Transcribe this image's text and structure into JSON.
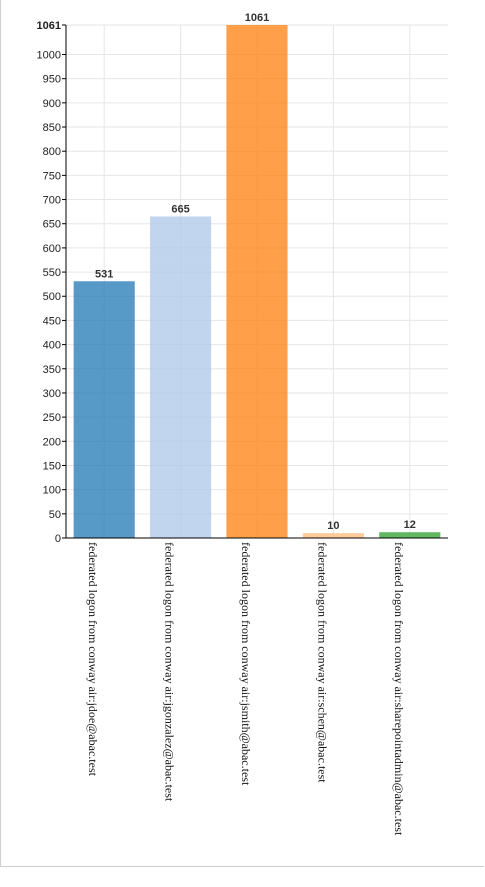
{
  "chart_data": {
    "type": "bar",
    "categories": [
      "federated logon from conway air:jdoe@abac.test",
      "federated logon from conway air:jgonzalez@abac.test",
      "federated logon from conway air:jsmith@abac.test",
      "federated logon from conway air:schen@abac.test",
      "federated logon from conway air:sharepointadmin@abac.test"
    ],
    "values": [
      531,
      665,
      1061,
      10,
      12
    ],
    "colors": [
      "#1f77b4",
      "#aec7e8",
      "#ff7f0e",
      "#ffbb78",
      "#2ca02c"
    ],
    "ylim": [
      0,
      1061
    ],
    "yticks": [
      0,
      50,
      100,
      150,
      200,
      250,
      300,
      350,
      400,
      450,
      500,
      550,
      600,
      650,
      700,
      750,
      800,
      850,
      900,
      950,
      1000,
      1061
    ],
    "grid": true,
    "title": "",
    "xlabel": "",
    "ylabel": ""
  }
}
